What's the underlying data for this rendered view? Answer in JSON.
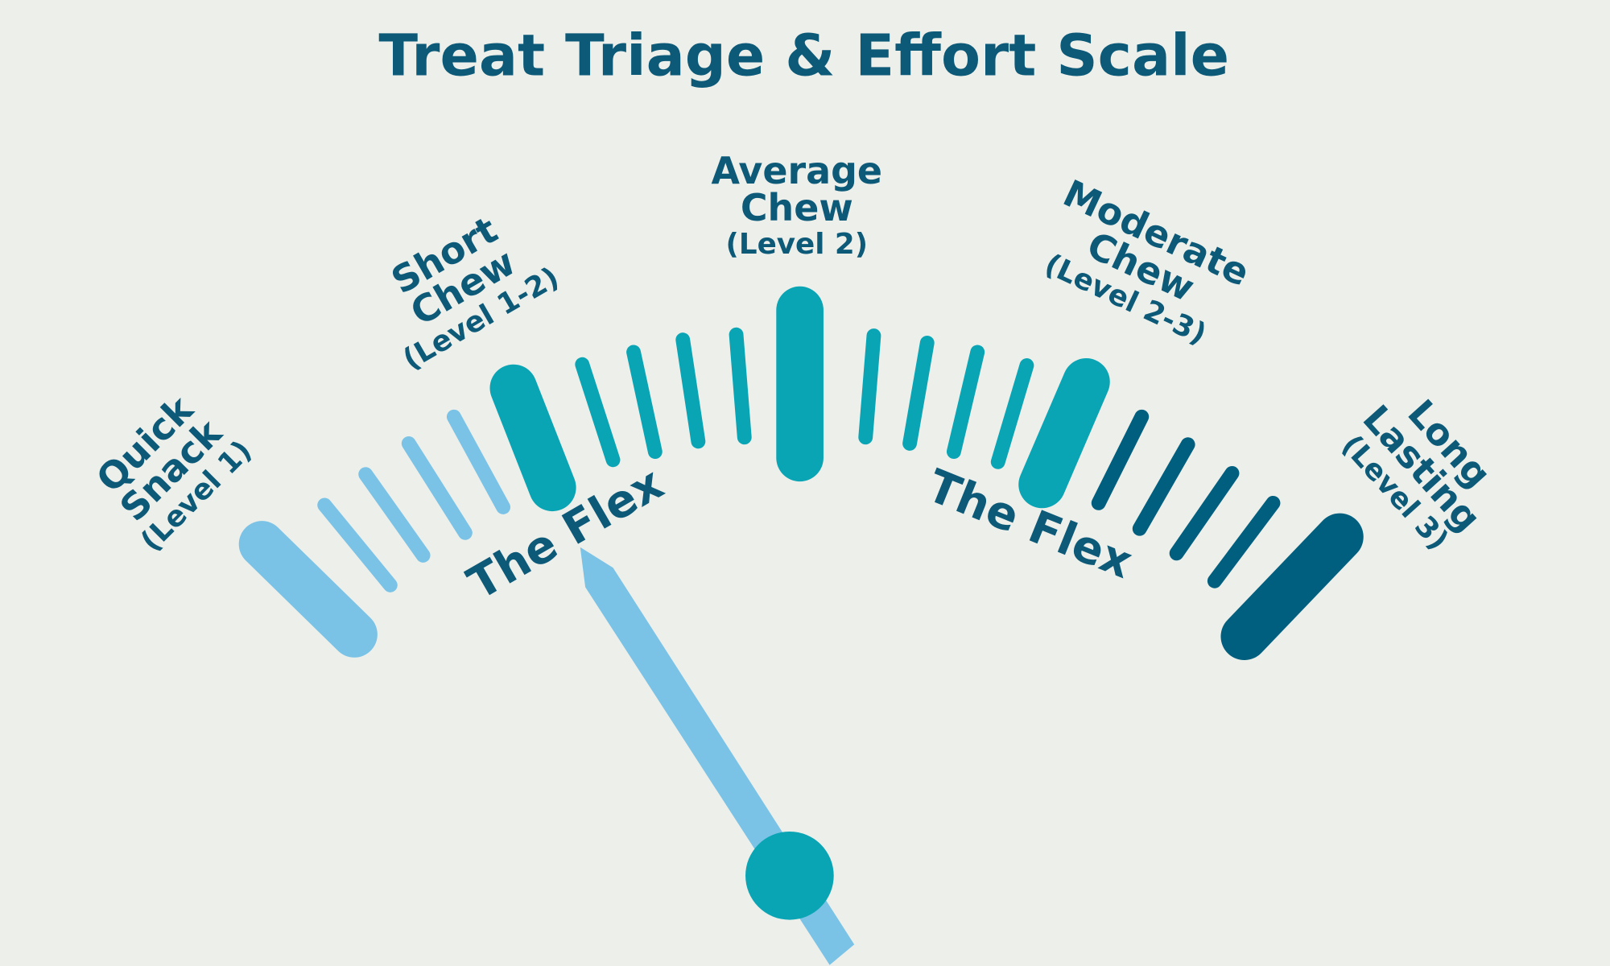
{
  "title": "Treat Triage & Effort Scale",
  "zones": [
    {
      "name": [
        "Quick",
        "Snack"
      ],
      "level": "(Level 1)"
    },
    {
      "name": [
        "Short",
        "Chew"
      ],
      "level": "(Level 1-2)"
    },
    {
      "name": [
        "Average",
        "Chew"
      ],
      "level": "(Level 2)"
    },
    {
      "name": [
        "Moderate",
        "Chew"
      ],
      "level": "(Level 2-3)"
    },
    {
      "name": [
        "Long",
        "Lasting"
      ],
      "level": "(Level 3)"
    }
  ],
  "flex_labels": [
    "The Flex",
    "The Flex"
  ]
}
